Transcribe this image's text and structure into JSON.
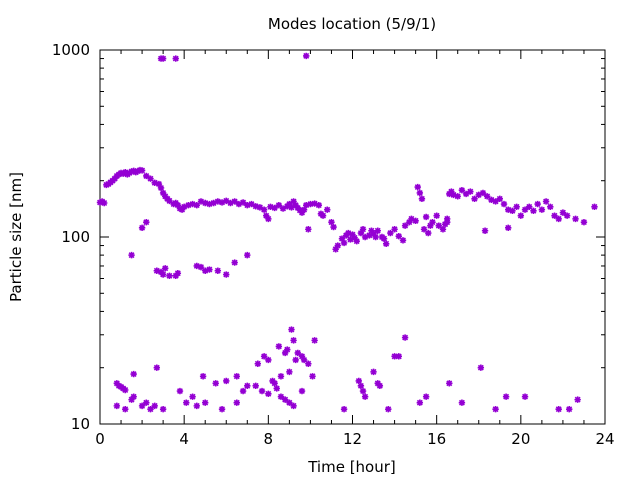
{
  "chart_data": {
    "type": "scatter",
    "title": "Modes location (5/9/1)",
    "xlabel": "Time [hour]",
    "ylabel": "Particle size [nm]",
    "xlim": [
      0,
      24
    ],
    "ylim": [
      10,
      1000
    ],
    "yscale": "log",
    "grid": false,
    "marker_color": "#9400d3",
    "xticks": [
      0,
      4,
      8,
      12,
      16,
      20,
      24
    ],
    "xtick_labels": [
      "0",
      "4",
      "8",
      "12",
      "16",
      "20",
      "24"
    ],
    "yticks": [
      10,
      100,
      1000
    ],
    "ytick_labels": [
      "10",
      "100",
      "1000"
    ],
    "points": [
      [
        0.0,
        153
      ],
      [
        0.1,
        155
      ],
      [
        0.2,
        152
      ],
      [
        0.3,
        190
      ],
      [
        0.4,
        192
      ],
      [
        0.5,
        196
      ],
      [
        0.6,
        200
      ],
      [
        0.7,
        205
      ],
      [
        0.8,
        212
      ],
      [
        0.9,
        216
      ],
      [
        1.0,
        220
      ],
      [
        1.1,
        218
      ],
      [
        1.2,
        222
      ],
      [
        1.3,
        216
      ],
      [
        1.4,
        220
      ],
      [
        1.5,
        224
      ],
      [
        1.6,
        226
      ],
      [
        1.7,
        222
      ],
      [
        1.8,
        225
      ],
      [
        1.9,
        228
      ],
      [
        2.0,
        227
      ],
      [
        2.2,
        212
      ],
      [
        2.4,
        205
      ],
      [
        2.6,
        195
      ],
      [
        2.8,
        192
      ],
      [
        2.9,
        183
      ],
      [
        3.0,
        172
      ],
      [
        3.1,
        165
      ],
      [
        3.2,
        160
      ],
      [
        3.3,
        156
      ],
      [
        3.5,
        150
      ],
      [
        3.6,
        152
      ],
      [
        3.7,
        148
      ],
      [
        3.8,
        142
      ],
      [
        3.9,
        140
      ],
      [
        4.0,
        145
      ],
      [
        4.2,
        148
      ],
      [
        4.4,
        150
      ],
      [
        4.6,
        148
      ],
      [
        4.8,
        155
      ],
      [
        5.0,
        152
      ],
      [
        5.2,
        150
      ],
      [
        5.4,
        152
      ],
      [
        5.6,
        155
      ],
      [
        5.8,
        153
      ],
      [
        6.0,
        156
      ],
      [
        6.2,
        152
      ],
      [
        6.4,
        155
      ],
      [
        6.6,
        150
      ],
      [
        6.8,
        153
      ],
      [
        7.0,
        148
      ],
      [
        7.2,
        150
      ],
      [
        7.4,
        146
      ],
      [
        7.6,
        144
      ],
      [
        7.8,
        140
      ],
      [
        7.9,
        130
      ],
      [
        8.0,
        125
      ],
      [
        8.1,
        145
      ],
      [
        8.3,
        143
      ],
      [
        8.5,
        148
      ],
      [
        8.7,
        142
      ],
      [
        8.9,
        146
      ],
      [
        9.0,
        150
      ],
      [
        9.1,
        144
      ],
      [
        9.2,
        155
      ],
      [
        9.3,
        148
      ],
      [
        9.4,
        143
      ],
      [
        9.5,
        139
      ],
      [
        9.6,
        135
      ],
      [
        9.7,
        140
      ],
      [
        9.8,
        148
      ],
      [
        10.0,
        150
      ],
      [
        10.2,
        151
      ],
      [
        10.4,
        148
      ],
      [
        10.5,
        133
      ],
      [
        10.6,
        130
      ],
      [
        10.8,
        140
      ],
      [
        11.0,
        120
      ],
      [
        11.1,
        113
      ],
      [
        11.2,
        86
      ],
      [
        11.3,
        90
      ],
      [
        11.5,
        98
      ],
      [
        11.6,
        93
      ],
      [
        11.7,
        102
      ],
      [
        11.8,
        105
      ],
      [
        11.9,
        97
      ],
      [
        12.0,
        103
      ],
      [
        12.1,
        99
      ],
      [
        12.2,
        95
      ],
      [
        12.4,
        105
      ],
      [
        12.5,
        110
      ],
      [
        12.6,
        100
      ],
      [
        12.8,
        102
      ],
      [
        12.9,
        108
      ],
      [
        13.0,
        104
      ],
      [
        13.1,
        100
      ],
      [
        13.2,
        108
      ],
      [
        13.4,
        100
      ],
      [
        13.5,
        98
      ],
      [
        13.6,
        92
      ],
      [
        13.8,
        105
      ],
      [
        14.0,
        110
      ],
      [
        14.2,
        101
      ],
      [
        14.4,
        96
      ],
      [
        14.5,
        115
      ],
      [
        14.7,
        120
      ],
      [
        14.8,
        125
      ],
      [
        15.0,
        122
      ],
      [
        15.1,
        185
      ],
      [
        15.2,
        172
      ],
      [
        15.3,
        160
      ],
      [
        15.4,
        110
      ],
      [
        15.5,
        128
      ],
      [
        15.6,
        105
      ],
      [
        15.7,
        115
      ],
      [
        15.8,
        120
      ],
      [
        16.0,
        130
      ],
      [
        16.1,
        115
      ],
      [
        16.3,
        110
      ],
      [
        16.5,
        125
      ],
      [
        16.6,
        170
      ],
      [
        16.7,
        175
      ],
      [
        16.8,
        168
      ],
      [
        17.0,
        165
      ],
      [
        17.2,
        178
      ],
      [
        17.4,
        170
      ],
      [
        17.6,
        175
      ],
      [
        17.8,
        160
      ],
      [
        18.0,
        168
      ],
      [
        18.2,
        172
      ],
      [
        18.4,
        165
      ],
      [
        18.6,
        158
      ],
      [
        18.8,
        155
      ],
      [
        19.0,
        160
      ],
      [
        19.2,
        150
      ],
      [
        19.4,
        140
      ],
      [
        19.6,
        138
      ],
      [
        19.8,
        145
      ],
      [
        20.0,
        130
      ],
      [
        20.2,
        140
      ],
      [
        20.4,
        145
      ],
      [
        20.6,
        138
      ],
      [
        20.8,
        150
      ],
      [
        21.0,
        140
      ],
      [
        21.2,
        155
      ],
      [
        21.4,
        145
      ],
      [
        21.6,
        130
      ],
      [
        21.8,
        125
      ],
      [
        22.0,
        135
      ],
      [
        22.2,
        130
      ],
      [
        22.6,
        125
      ],
      [
        23.0,
        120
      ],
      [
        23.5,
        145
      ],
      [
        1.5,
        80
      ],
      [
        2.0,
        112
      ],
      [
        2.2,
        120
      ],
      [
        2.7,
        66
      ],
      [
        2.9,
        65
      ],
      [
        3.0,
        63
      ],
      [
        3.1,
        68
      ],
      [
        3.3,
        62
      ],
      [
        3.6,
        62
      ],
      [
        3.7,
        64
      ],
      [
        4.6,
        70
      ],
      [
        4.8,
        69
      ],
      [
        5.0,
        66
      ],
      [
        5.2,
        67
      ],
      [
        5.6,
        66
      ],
      [
        6.0,
        63
      ],
      [
        6.4,
        73
      ],
      [
        7.0,
        80
      ],
      [
        9.9,
        110
      ],
      [
        19.4,
        112
      ],
      [
        18.3,
        108
      ],
      [
        16.5,
        120
      ],
      [
        16.4,
        117
      ],
      [
        2.9,
        900
      ],
      [
        3.0,
        900
      ],
      [
        3.6,
        900
      ],
      [
        9.8,
        930
      ],
      [
        0.8,
        16.5
      ],
      [
        0.9,
        16
      ],
      [
        1.0,
        15.8
      ],
      [
        1.1,
        15.5
      ],
      [
        1.2,
        15.2
      ],
      [
        1.6,
        18.5
      ],
      [
        2.7,
        20
      ],
      [
        4.9,
        18
      ],
      [
        5.5,
        16.5
      ],
      [
        6.0,
        17
      ],
      [
        6.5,
        18
      ],
      [
        6.8,
        15
      ],
      [
        7.0,
        16
      ],
      [
        7.5,
        21
      ],
      [
        7.8,
        23
      ],
      [
        8.0,
        22
      ],
      [
        8.5,
        26
      ],
      [
        8.3,
        16.5
      ],
      [
        8.6,
        18
      ],
      [
        8.8,
        24
      ],
      [
        8.9,
        25
      ],
      [
        9.0,
        19
      ],
      [
        9.1,
        32
      ],
      [
        9.2,
        28
      ],
      [
        9.3,
        22
      ],
      [
        9.4,
        24
      ],
      [
        9.6,
        23
      ],
      [
        9.7,
        22
      ],
      [
        9.9,
        21
      ],
      [
        10.1,
        18
      ],
      [
        10.2,
        28
      ],
      [
        12.3,
        17
      ],
      [
        12.4,
        16
      ],
      [
        12.5,
        15
      ],
      [
        12.6,
        14
      ],
      [
        13.0,
        19
      ],
      [
        13.2,
        16.5
      ],
      [
        13.3,
        16
      ],
      [
        14.0,
        23
      ],
      [
        14.2,
        23
      ],
      [
        14.5,
        29
      ],
      [
        15.2,
        13
      ],
      [
        15.5,
        14
      ],
      [
        16.6,
        16.5
      ],
      [
        17.2,
        13
      ],
      [
        18.1,
        20
      ],
      [
        18.8,
        12
      ],
      [
        19.3,
        14
      ],
      [
        20.2,
        14
      ],
      [
        0.8,
        12.5
      ],
      [
        1.2,
        12
      ],
      [
        1.5,
        13.5
      ],
      [
        1.6,
        14
      ],
      [
        2.0,
        12.5
      ],
      [
        2.2,
        13
      ],
      [
        2.4,
        12
      ],
      [
        2.6,
        12.5
      ],
      [
        3.0,
        12
      ],
      [
        3.8,
        15
      ],
      [
        4.1,
        13
      ],
      [
        4.4,
        14
      ],
      [
        4.6,
        12.5
      ],
      [
        5.0,
        13
      ],
      [
        5.8,
        12
      ],
      [
        6.5,
        13
      ],
      [
        7.4,
        16
      ],
      [
        7.7,
        15
      ],
      [
        8.0,
        14.5
      ],
      [
        8.2,
        17
      ],
      [
        8.4,
        15.5
      ],
      [
        8.6,
        14
      ],
      [
        8.8,
        13.5
      ],
      [
        9.0,
        13
      ],
      [
        9.2,
        12.5
      ],
      [
        9.6,
        15
      ],
      [
        11.6,
        12
      ],
      [
        13.7,
        12
      ],
      [
        21.8,
        12
      ],
      [
        22.3,
        12
      ],
      [
        22.7,
        13.5
      ]
    ]
  }
}
